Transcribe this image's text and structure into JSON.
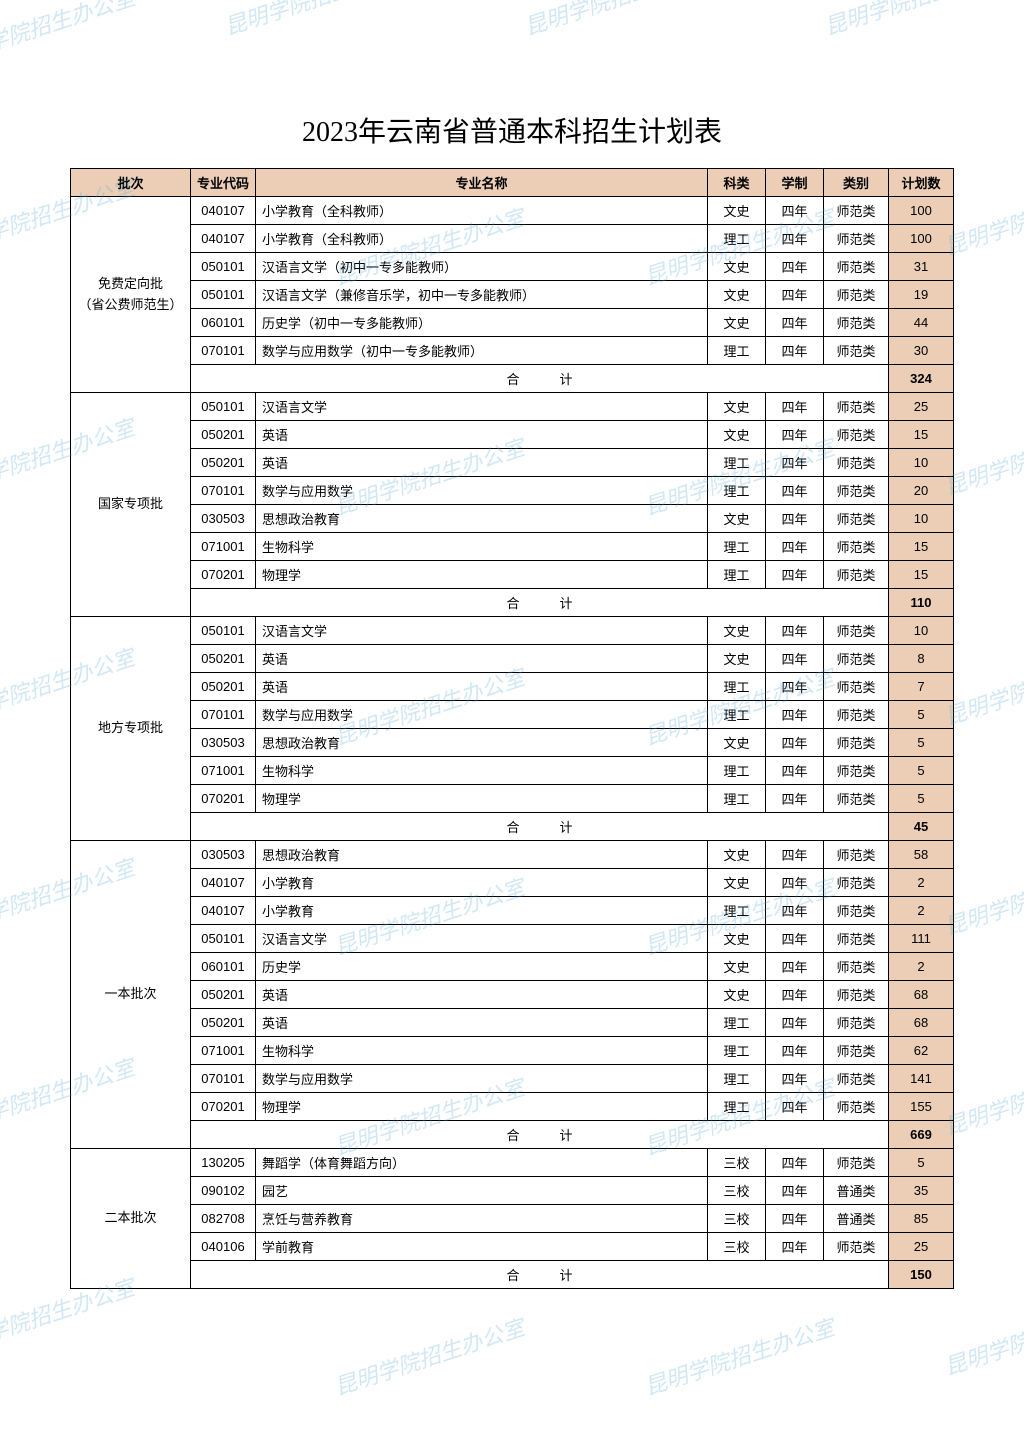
{
  "title": "2023年云南省普通本科招生计划表",
  "watermark_text": "昆明学院招生办公室",
  "columns": [
    "批次",
    "专业代码",
    "专业名称",
    "科类",
    "学制",
    "类别",
    "计划数"
  ],
  "subtotal_label": "合计",
  "colors": {
    "header_bg": "#ebceb5",
    "count_bg": "#ebceb5",
    "border": "#000000",
    "watermark": "#4da3da"
  },
  "sections": [
    {
      "batch": "免费定向批\n（省公费师范生）",
      "rows": [
        {
          "code": "040107",
          "name": "小学教育（全科教师）",
          "subj": "文史",
          "dur": "四年",
          "cat": "师范类",
          "cnt": "100"
        },
        {
          "code": "040107",
          "name": "小学教育（全科教师）",
          "subj": "理工",
          "dur": "四年",
          "cat": "师范类",
          "cnt": "100"
        },
        {
          "code": "050101",
          "name": "汉语言文学（初中一专多能教师）",
          "subj": "文史",
          "dur": "四年",
          "cat": "师范类",
          "cnt": "31"
        },
        {
          "code": "050101",
          "name": "汉语言文学（兼修音乐学，初中一专多能教师）",
          "subj": "文史",
          "dur": "四年",
          "cat": "师范类",
          "cnt": "19"
        },
        {
          "code": "060101",
          "name": "历史学（初中一专多能教师）",
          "subj": "文史",
          "dur": "四年",
          "cat": "师范类",
          "cnt": "44"
        },
        {
          "code": "070101",
          "name": "数学与应用数学（初中一专多能教师）",
          "subj": "理工",
          "dur": "四年",
          "cat": "师范类",
          "cnt": "30"
        }
      ],
      "subtotal": "324"
    },
    {
      "batch": "国家专项批",
      "rows": [
        {
          "code": "050101",
          "name": "汉语言文学",
          "subj": "文史",
          "dur": "四年",
          "cat": "师范类",
          "cnt": "25"
        },
        {
          "code": "050201",
          "name": "英语",
          "subj": "文史",
          "dur": "四年",
          "cat": "师范类",
          "cnt": "15"
        },
        {
          "code": "050201",
          "name": "英语",
          "subj": "理工",
          "dur": "四年",
          "cat": "师范类",
          "cnt": "10"
        },
        {
          "code": "070101",
          "name": "数学与应用数学",
          "subj": "理工",
          "dur": "四年",
          "cat": "师范类",
          "cnt": "20"
        },
        {
          "code": "030503",
          "name": "思想政治教育",
          "subj": "文史",
          "dur": "四年",
          "cat": "师范类",
          "cnt": "10"
        },
        {
          "code": "071001",
          "name": "生物科学",
          "subj": "理工",
          "dur": "四年",
          "cat": "师范类",
          "cnt": "15"
        },
        {
          "code": "070201",
          "name": "物理学",
          "subj": "理工",
          "dur": "四年",
          "cat": "师范类",
          "cnt": "15"
        }
      ],
      "subtotal": "110"
    },
    {
      "batch": "地方专项批",
      "rows": [
        {
          "code": "050101",
          "name": "汉语言文学",
          "subj": "文史",
          "dur": "四年",
          "cat": "师范类",
          "cnt": "10"
        },
        {
          "code": "050201",
          "name": "英语",
          "subj": "文史",
          "dur": "四年",
          "cat": "师范类",
          "cnt": "8"
        },
        {
          "code": "050201",
          "name": "英语",
          "subj": "理工",
          "dur": "四年",
          "cat": "师范类",
          "cnt": "7"
        },
        {
          "code": "070101",
          "name": "数学与应用数学",
          "subj": "理工",
          "dur": "四年",
          "cat": "师范类",
          "cnt": "5"
        },
        {
          "code": "030503",
          "name": "思想政治教育",
          "subj": "文史",
          "dur": "四年",
          "cat": "师范类",
          "cnt": "5"
        },
        {
          "code": "071001",
          "name": "生物科学",
          "subj": "理工",
          "dur": "四年",
          "cat": "师范类",
          "cnt": "5"
        },
        {
          "code": "070201",
          "name": "物理学",
          "subj": "理工",
          "dur": "四年",
          "cat": "师范类",
          "cnt": "5"
        }
      ],
      "subtotal": "45"
    },
    {
      "batch": "一本批次",
      "rows": [
        {
          "code": "030503",
          "name": "思想政治教育",
          "subj": "文史",
          "dur": "四年",
          "cat": "师范类",
          "cnt": "58"
        },
        {
          "code": "040107",
          "name": "小学教育",
          "subj": "文史",
          "dur": "四年",
          "cat": "师范类",
          "cnt": "2"
        },
        {
          "code": "040107",
          "name": "小学教育",
          "subj": "理工",
          "dur": "四年",
          "cat": "师范类",
          "cnt": "2"
        },
        {
          "code": "050101",
          "name": "汉语言文学",
          "subj": "文史",
          "dur": "四年",
          "cat": "师范类",
          "cnt": "111"
        },
        {
          "code": "060101",
          "name": "历史学",
          "subj": "文史",
          "dur": "四年",
          "cat": "师范类",
          "cnt": "2"
        },
        {
          "code": "050201",
          "name": "英语",
          "subj": "文史",
          "dur": "四年",
          "cat": "师范类",
          "cnt": "68"
        },
        {
          "code": "050201",
          "name": "英语",
          "subj": "理工",
          "dur": "四年",
          "cat": "师范类",
          "cnt": "68"
        },
        {
          "code": "071001",
          "name": "生物科学",
          "subj": "理工",
          "dur": "四年",
          "cat": "师范类",
          "cnt": "62"
        },
        {
          "code": "070101",
          "name": "数学与应用数学",
          "subj": "理工",
          "dur": "四年",
          "cat": "师范类",
          "cnt": "141"
        },
        {
          "code": "070201",
          "name": "物理学",
          "subj": "理工",
          "dur": "四年",
          "cat": "师范类",
          "cnt": "155"
        }
      ],
      "subtotal": "669"
    },
    {
      "batch": "二本批次",
      "rows": [
        {
          "code": "130205",
          "name": "舞蹈学（体育舞蹈方向）",
          "subj": "三校",
          "dur": "四年",
          "cat": "师范类",
          "cnt": "5"
        },
        {
          "code": "090102",
          "name": "园艺",
          "subj": "三校",
          "dur": "四年",
          "cat": "普通类",
          "cnt": "35"
        },
        {
          "code": "082708",
          "name": "烹饪与营养教育",
          "subj": "三校",
          "dur": "四年",
          "cat": "普通类",
          "cnt": "85"
        },
        {
          "code": "040106",
          "name": "学前教育",
          "subj": "三校",
          "dur": "四年",
          "cat": "师范类",
          "cnt": "25"
        }
      ],
      "subtotal": "150"
    }
  ]
}
